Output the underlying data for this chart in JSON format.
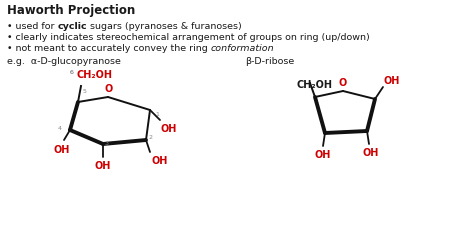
{
  "title": "Haworth Projection",
  "bg_color": "#ffffff",
  "text_color": "#1a1a1a",
  "red_color": "#cc0000",
  "eg_label": "e.g.  α-D-glucopyranose",
  "beta_label": "β-D-ribose",
  "figsize": [
    4.74,
    2.27
  ],
  "dpi": 100
}
